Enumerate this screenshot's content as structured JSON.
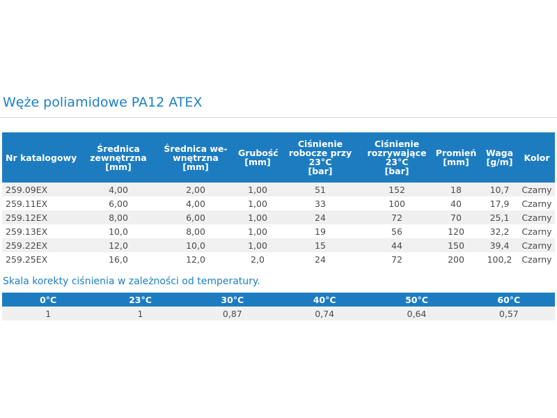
{
  "title": "Węże poliamidowe PA12 ATEX",
  "table": {
    "header": [
      "Nr katalogowy",
      "Średnica\nzewnętrzna\n[mm]",
      "Średnica we-\nwnętrzna\n[mm]",
      "Grubość\n[mm]",
      "Ciśnienie\nrobocze przy\n23°C\n[bar]",
      "Ciśnienie\nrozrywające\n23°C\n[bar]",
      "Promień\n[mm]",
      "Waga\n[g/m]",
      "Kolor"
    ],
    "rows": [
      [
        "259.09EX",
        "4,00",
        "2,00",
        "1,00",
        "51",
        "152",
        "18",
        "10,7",
        "Czarny"
      ],
      [
        "259.11EX",
        "6,00",
        "4,00",
        "1,00",
        "33",
        "100",
        "40",
        "17,9",
        "Czarny"
      ],
      [
        "259.12EX",
        "8,00",
        "6,00",
        "1,00",
        "24",
        "72",
        "70",
        "25,1",
        "Czarny"
      ],
      [
        "259.13EX",
        "10,0",
        "8,00",
        "1,00",
        "19",
        "56",
        "120",
        "32,2",
        "Czarny"
      ],
      [
        "259.22EX",
        "12,0",
        "10,0",
        "1,00",
        "15",
        "44",
        "150",
        "39,4",
        "Czarny"
      ],
      [
        "259.25EX",
        "16,0",
        "12,0",
        "2,0",
        "24",
        "72",
        "200",
        "100,2",
        "Czarny"
      ]
    ]
  },
  "subtitle": "Skala korekty ciśnienia w zależności od temperatury.",
  "scale_table": {
    "header": [
      "0°C",
      "23°C",
      "30°C",
      "40°C",
      "50°C",
      "60°C"
    ],
    "rows": [
      [
        "1",
        "1",
        "0,87",
        "0,74",
        "0,64",
        "0,57"
      ]
    ]
  }
}
